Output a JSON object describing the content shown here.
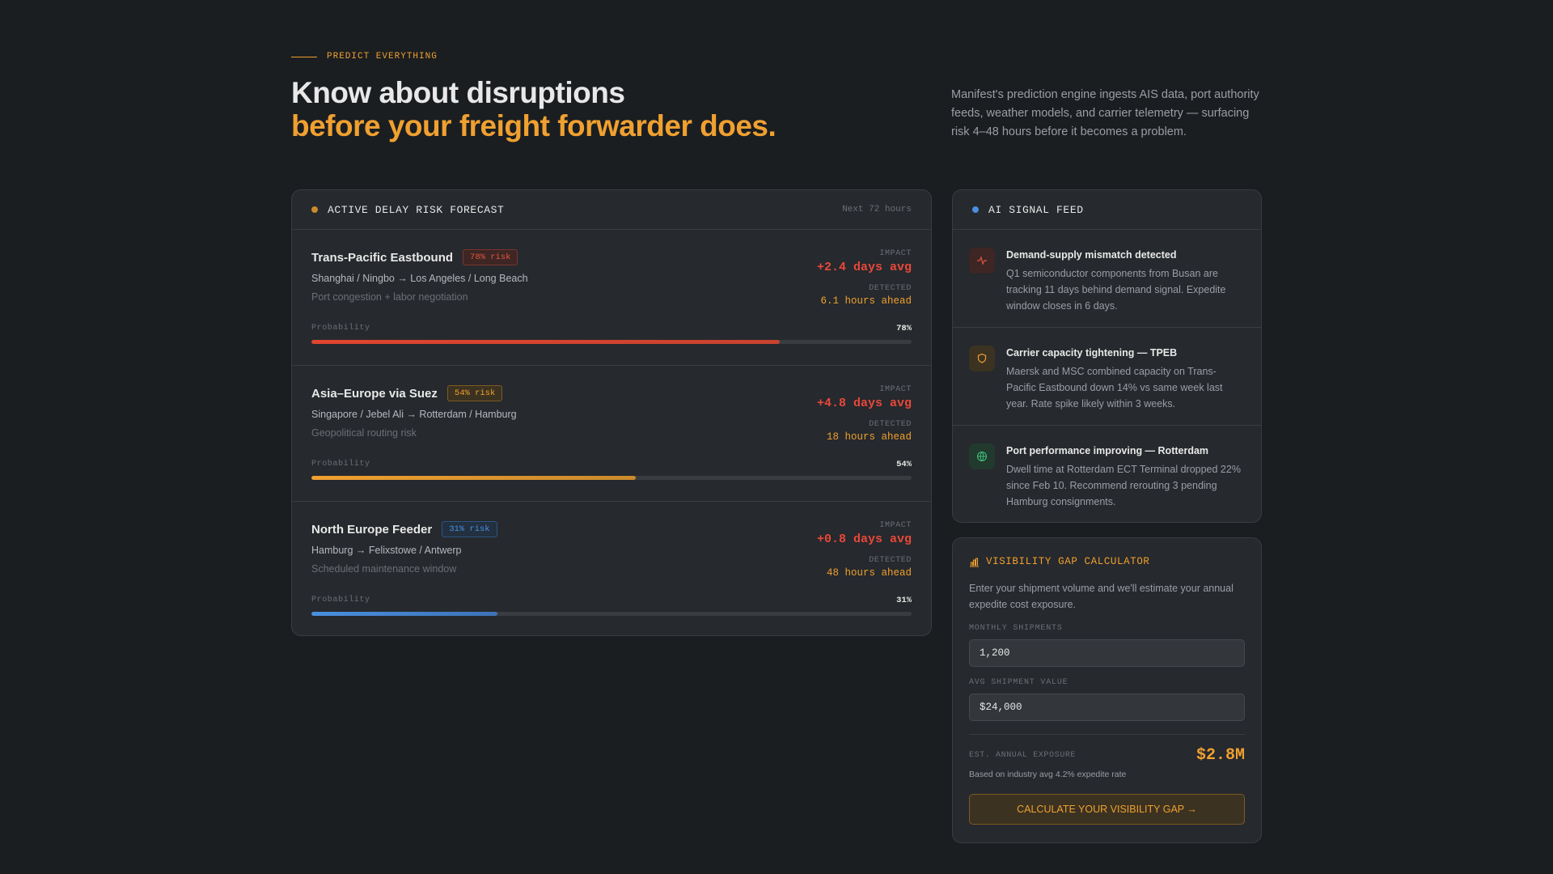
{
  "eyebrow": "PREDICT EVERYTHING",
  "headline": {
    "line1": "Know about disruptions",
    "line2": "before your freight forwarder does."
  },
  "intro": "Manifest's prediction engine ingests AIS data, port authority feeds, weather models, and carrier telemetry — surfacing risk 4–48 hours before it becomes a problem.",
  "forecast": {
    "title": "ACTIVE DELAY RISK FORECAST",
    "window": "Next 72 hours",
    "impact_label": "IMPACT",
    "detected_label": "DETECTED",
    "probability_label": "Probability",
    "routes": [
      {
        "name": "Trans-Pacific Eastbound",
        "risk": "78% risk",
        "level": "high",
        "path": "Shanghai / Ningbo → Los Angeles / Long Beach",
        "cause": "Port congestion + labor negotiation",
        "impact": "+2.4 days avg",
        "detected": "6.1 hours ahead",
        "probability": {
          "value": 78,
          "label": "78%"
        }
      },
      {
        "name": "Asia–Europe via Suez",
        "risk": "54% risk",
        "level": "medium",
        "path": "Singapore / Jebel Ali → Rotterdam / Hamburg",
        "cause": "Geopolitical routing risk",
        "impact": "+4.8 days avg",
        "detected": "18 hours ahead",
        "probability": {
          "value": 54,
          "label": "54%"
        }
      },
      {
        "name": "North Europe Feeder",
        "risk": "31% risk",
        "level": "low",
        "path": "Hamburg → Felixstowe / Antwerp",
        "cause": "Scheduled maintenance window",
        "impact": "+0.8 days avg",
        "detected": "48 hours ahead",
        "probability": {
          "value": 31,
          "label": "31%"
        }
      }
    ]
  },
  "signals": {
    "title": "AI SIGNAL FEED",
    "items": [
      {
        "kind": "alert",
        "title": "Demand-supply mismatch detected",
        "body": "Q1 semiconductor components from Busan are tracking 11 days behind demand signal. Expedite window closes in 6 days."
      },
      {
        "kind": "warning",
        "title": "Carrier capacity tightening — TPEB",
        "body": "Maersk and MSC combined capacity on Trans-Pacific Eastbound down 14% vs same week last year. Rate spike likely within 3 weeks."
      },
      {
        "kind": "positive",
        "title": "Port performance improving — Rotterdam",
        "body": "Dwell time at Rotterdam ECT Terminal dropped 22% since Feb 10. Recommend rerouting 3 pending Hamburg consignments."
      }
    ]
  },
  "calculator": {
    "title": "VISIBILITY GAP CALCULATOR",
    "description": "Enter your shipment volume and we'll estimate your annual expedite cost exposure.",
    "fields": [
      {
        "label": "MONTHLY SHIPMENTS",
        "value": "1,200"
      },
      {
        "label": "AVG SHIPMENT VALUE",
        "value": "$24,000"
      }
    ],
    "exposure_label": "EST. ANNUAL EXPOSURE",
    "exposure": "$2.8M",
    "note": "Based on industry avg 4.2% expedite rate",
    "button": "CALCULATE YOUR VISIBILITY GAP →"
  }
}
